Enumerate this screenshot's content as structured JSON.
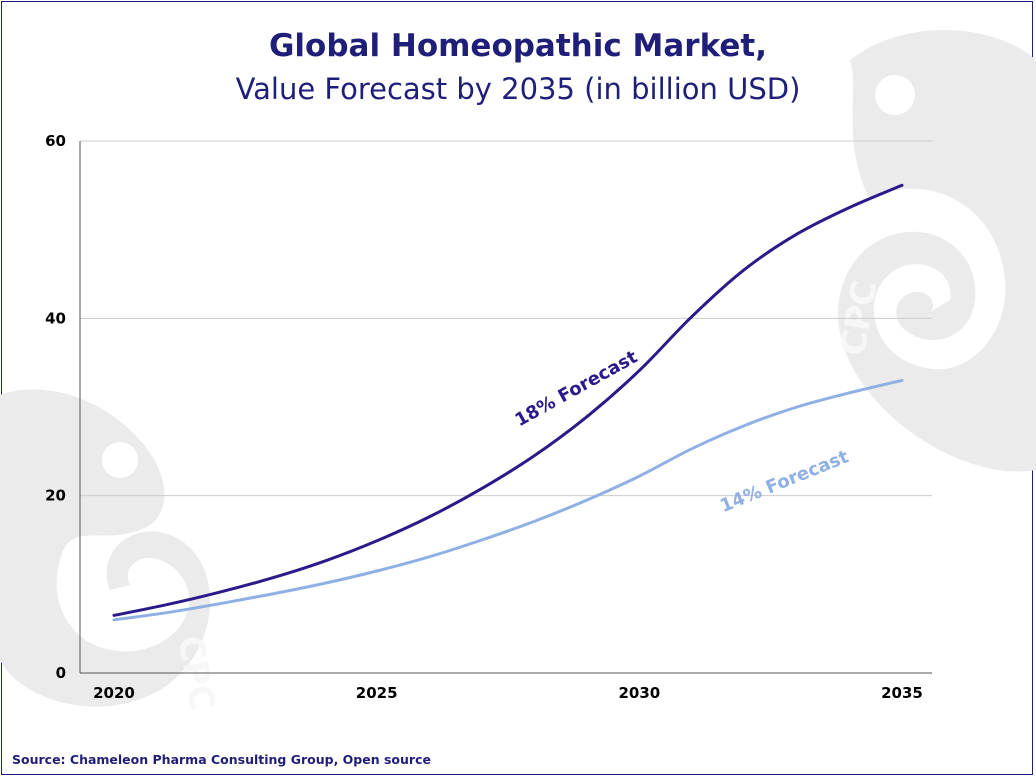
{
  "title": "Global Homeopathic Market,",
  "subtitle": "Value Forecast by 2035 (in billion USD)",
  "source": "Source:  Chameleon Pharma Consulting Group, Open source",
  "watermark_text": "CPC",
  "colors": {
    "frame": "#1f1f7a",
    "title": "#1f1f7a",
    "series_18": "#2a1a8a",
    "series_14": "#8fb0e4",
    "grid": "#cccccc",
    "watermark": "#e8e8e8"
  },
  "chart_data": {
    "type": "line",
    "title": "Global Homeopathic Market, Value Forecast by 2035 (in billion USD)",
    "xlabel": "",
    "ylabel": "",
    "x": [
      2020,
      2025,
      2030,
      2035
    ],
    "xlim": [
      2020,
      2035
    ],
    "ylim": [
      0,
      60
    ],
    "yticks": [
      0,
      20,
      40,
      60
    ],
    "xtick_labels": [
      "2020",
      "2025",
      "2030",
      "2035"
    ],
    "ytick_labels": [
      "0",
      "20",
      "40",
      "60"
    ],
    "grid": true,
    "legend": "none",
    "series": [
      {
        "name": "18% Forecast",
        "x": [
          2020,
          2021,
          2022,
          2023,
          2024,
          2025,
          2026,
          2027,
          2028,
          2029,
          2030,
          2031,
          2032,
          2033,
          2034,
          2035
        ],
        "values": [
          6.5,
          7.7,
          9.1,
          10.7,
          12.6,
          14.9,
          17.6,
          20.8,
          24.5,
          28.9,
          34.1,
          40.2,
          45.5,
          49.5,
          52.5,
          55.0
        ],
        "color": "#2a1a8a"
      },
      {
        "name": "14% Forecast",
        "x": [
          2020,
          2021,
          2022,
          2023,
          2024,
          2025,
          2026,
          2027,
          2028,
          2029,
          2030,
          2031,
          2032,
          2033,
          2034,
          2035
        ],
        "values": [
          6.0,
          6.8,
          7.8,
          8.9,
          10.1,
          11.5,
          13.1,
          15.0,
          17.1,
          19.5,
          22.2,
          25.3,
          27.9,
          30.0,
          31.6,
          33.0
        ],
        "color": "#8fb0e4"
      }
    ],
    "annotations": [
      "18% Forecast",
      "14% Forecast"
    ]
  }
}
